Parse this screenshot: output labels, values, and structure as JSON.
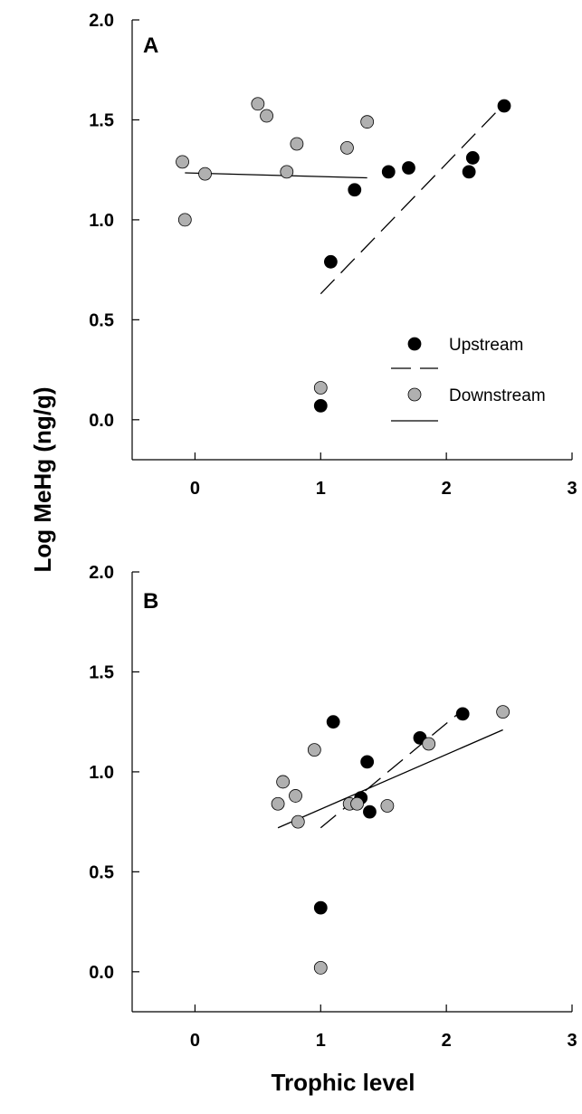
{
  "chart_data": [
    {
      "type": "scatter",
      "panel_label": "A",
      "xlim": [
        -0.5,
        3
      ],
      "ylim": [
        -0.2,
        2.0
      ],
      "x_ticks": [
        "0",
        "1",
        "2",
        "3"
      ],
      "y_ticks": [
        "0.0",
        "0.5",
        "1.0",
        "1.5",
        "2.0"
      ],
      "legend": {
        "position": "lower-right",
        "entries": [
          "Upstream",
          "Downstream"
        ]
      },
      "series": [
        {
          "name": "Upstream",
          "color": "#000000",
          "line_style": "dashed",
          "x": [
            1.0,
            1.08,
            1.27,
            1.54,
            1.7,
            2.18,
            2.21,
            2.46
          ],
          "y": [
            0.07,
            0.79,
            1.15,
            1.24,
            1.26,
            1.24,
            1.31,
            1.57
          ],
          "fit": {
            "x": [
              1.0,
              2.46
            ],
            "y": [
              0.63,
              1.58
            ]
          }
        },
        {
          "name": "Downstream",
          "color": "#b0b0b0",
          "line_style": "solid",
          "x": [
            -0.1,
            -0.08,
            0.08,
            0.5,
            0.57,
            0.73,
            0.81,
            1.0,
            1.21,
            1.37
          ],
          "y": [
            1.29,
            1.0,
            1.23,
            1.58,
            1.52,
            1.24,
            1.38,
            0.16,
            1.36,
            1.49
          ],
          "fit": {
            "x": [
              -0.08,
              1.37
            ],
            "y": [
              1.235,
              1.21
            ]
          }
        }
      ]
    },
    {
      "type": "scatter",
      "panel_label": "B",
      "xlim": [
        -0.5,
        3
      ],
      "ylim": [
        -0.2,
        2.0
      ],
      "x_ticks": [
        "0",
        "1",
        "2",
        "3"
      ],
      "y_ticks": [
        "0.0",
        "0.5",
        "1.0",
        "1.5",
        "2.0"
      ],
      "series": [
        {
          "name": "Upstream",
          "color": "#000000",
          "line_style": "dashed",
          "x": [
            1.0,
            1.1,
            1.32,
            1.37,
            1.39,
            1.79,
            2.13
          ],
          "y": [
            0.32,
            1.25,
            0.87,
            1.05,
            0.8,
            1.17,
            1.29
          ],
          "fit": {
            "x": [
              1.0,
              2.13
            ],
            "y": [
              0.72,
              1.31
            ]
          }
        },
        {
          "name": "Downstream",
          "color": "#b0b0b0",
          "line_style": "solid",
          "x": [
            0.66,
            0.7,
            0.8,
            0.82,
            0.95,
            1.0,
            1.23,
            1.29,
            1.53,
            1.86,
            2.45
          ],
          "y": [
            0.84,
            0.95,
            0.88,
            0.75,
            1.11,
            0.02,
            0.84,
            0.84,
            0.83,
            1.14,
            1.3
          ],
          "fit": {
            "x": [
              0.66,
              2.45
            ],
            "y": [
              0.72,
              1.21
            ]
          }
        }
      ]
    }
  ],
  "axes": {
    "xlabel": "Trophic level",
    "ylabel": "Log MeHg (ng/g)"
  }
}
